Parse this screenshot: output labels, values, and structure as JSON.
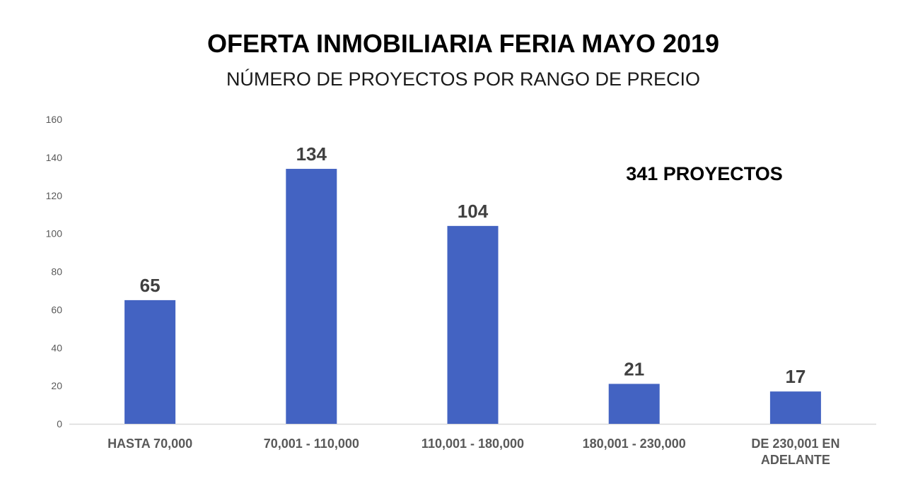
{
  "chart_data": {
    "type": "bar",
    "title": "OFERTA INMOBILIARIA FERIA MAYO 2019",
    "subtitle": "NÚMERO DE PROYECTOS POR RANGO DE PRECIO",
    "annotation": "341 PROYECTOS",
    "categories": [
      [
        "HASTA 70,000"
      ],
      [
        "70,001 - 110,000"
      ],
      [
        "110,001 - 180,000"
      ],
      [
        "180,001 - 230,000"
      ],
      [
        "DE 230,001 EN",
        "ADELANTE"
      ]
    ],
    "values": [
      65,
      134,
      104,
      21,
      17
    ],
    "data_labels": [
      "65",
      "134",
      "104",
      "21",
      "17"
    ],
    "yticks": [
      "0",
      "20",
      "40",
      "60",
      "80",
      "100",
      "120",
      "140",
      "160"
    ],
    "ylim": [
      0,
      160
    ],
    "xlabel": "",
    "ylabel": "",
    "grid": false,
    "legend": "none",
    "bar_color": "#4363C2",
    "axis_color": "#D9D9D9"
  }
}
